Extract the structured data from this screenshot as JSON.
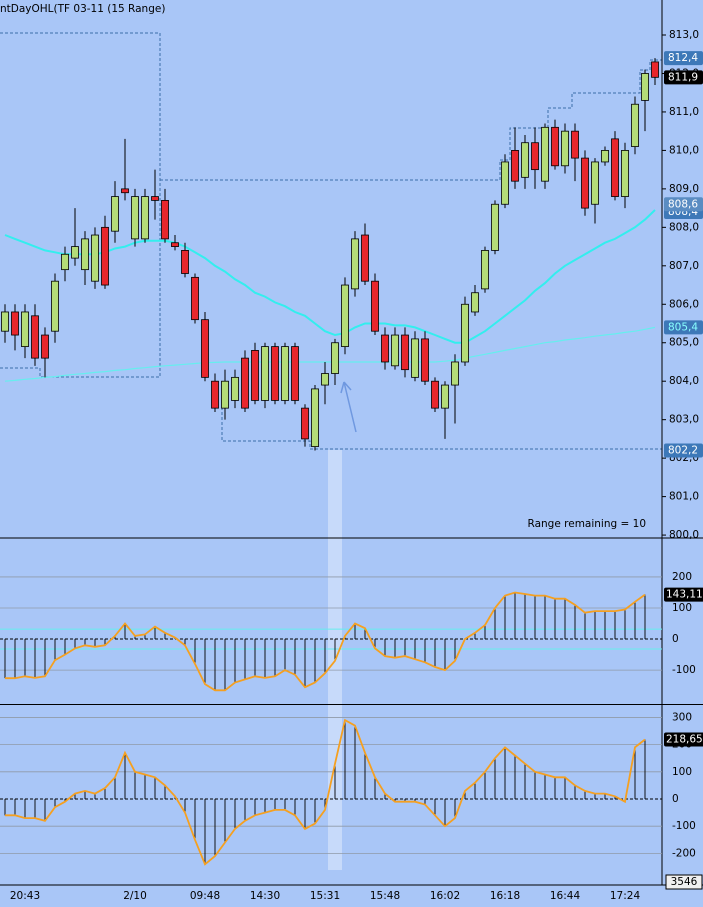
{
  "chart_data": [
    {
      "type": "candlestick",
      "title": "ntDayOHL(TF 03-11 (15 Range)",
      "annotation": "Range remaining = 10",
      "bar_count": "3546",
      "categories": [
        null,
        null,
        "20:43",
        null,
        null,
        null,
        null,
        null,
        null,
        null,
        null,
        null,
        null,
        "2/10",
        null,
        null,
        null,
        null,
        null,
        null,
        "09:48",
        null,
        null,
        null,
        null,
        null,
        "14:30",
        null,
        null,
        null,
        null,
        null,
        "15:31",
        null,
        null,
        null,
        null,
        null,
        "15:48",
        null,
        null,
        null,
        null,
        null,
        "16:02",
        null,
        null,
        null,
        null,
        null,
        "16:18",
        null,
        null,
        null,
        null,
        null,
        "16:44",
        null,
        null,
        null,
        null,
        null,
        "17:24",
        null,
        null,
        null
      ],
      "open": [
        805.3,
        805.8,
        804.9,
        805.7,
        805.2,
        805.3,
        806.9,
        807.2,
        806.9,
        806.6,
        808.0,
        807.9,
        809.0,
        807.7,
        807.7,
        808.8,
        808.7,
        807.6,
        807.4,
        806.7,
        805.6,
        804.0,
        803.3,
        803.5,
        804.6,
        804.8,
        803.5,
        804.9,
        803.5,
        804.9,
        803.3,
        802.3,
        803.9,
        804.2,
        804.9,
        806.4,
        807.8,
        806.6,
        805.2,
        804.4,
        805.2,
        804.1,
        805.1,
        804.0,
        803.3,
        803.9,
        804.5,
        805.8,
        806.4,
        807.4,
        808.6,
        810.0,
        809.3,
        810.2,
        809.2,
        810.6,
        809.6,
        810.5,
        809.8,
        808.6,
        809.7,
        810.3,
        808.8,
        810.1,
        811.3,
        812.3
      ],
      "high": [
        806.0,
        806.0,
        806.0,
        806.0,
        805.4,
        806.8,
        807.5,
        808.5,
        807.9,
        808.0,
        808.3,
        809.2,
        810.3,
        809.0,
        809.0,
        809.5,
        809.0,
        807.8,
        807.6,
        806.8,
        805.8,
        804.2,
        804.3,
        804.3,
        804.8,
        805.0,
        805.0,
        805.0,
        805.0,
        805.0,
        803.4,
        803.9,
        804.5,
        805.1,
        806.7,
        807.9,
        808.1,
        806.8,
        805.4,
        805.4,
        805.4,
        805.3,
        805.3,
        804.1,
        804.0,
        804.7,
        806.2,
        806.5,
        807.5,
        808.7,
        809.9,
        810.6,
        810.4,
        810.6,
        810.7,
        810.8,
        810.7,
        810.7,
        810.0,
        809.8,
        810.1,
        810.5,
        810.2,
        811.4,
        812.1,
        812.4
      ],
      "low": [
        805.0,
        804.8,
        804.6,
        804.4,
        804.1,
        805.0,
        806.6,
        807.0,
        806.5,
        806.4,
        806.4,
        807.6,
        808.7,
        807.5,
        807.6,
        808.2,
        807.6,
        807.4,
        806.7,
        805.5,
        804.0,
        803.2,
        803.0,
        803.3,
        803.2,
        803.4,
        803.3,
        803.4,
        803.4,
        803.4,
        802.3,
        802.2,
        803.4,
        803.9,
        804.7,
        806.2,
        806.5,
        805.2,
        804.3,
        804.3,
        804.1,
        804.0,
        803.9,
        803.2,
        802.5,
        802.9,
        804.4,
        805.7,
        806.3,
        807.3,
        808.5,
        809.0,
        809.0,
        809.0,
        809.0,
        809.5,
        809.4,
        809.2,
        808.3,
        808.1,
        809.6,
        808.7,
        808.5,
        809.9,
        810.5,
        811.7
      ],
      "close": [
        805.8,
        805.2,
        805.8,
        804.6,
        804.6,
        806.6,
        807.3,
        807.5,
        807.7,
        807.8,
        806.5,
        808.8,
        808.9,
        808.8,
        808.8,
        808.7,
        807.7,
        807.5,
        806.8,
        805.6,
        804.1,
        803.3,
        804.0,
        804.1,
        803.3,
        803.5,
        804.9,
        803.5,
        804.9,
        803.5,
        802.5,
        803.8,
        804.2,
        805.0,
        806.5,
        807.7,
        806.6,
        805.3,
        804.5,
        805.2,
        804.3,
        805.1,
        804.0,
        803.3,
        803.9,
        804.5,
        806.0,
        806.3,
        807.4,
        808.6,
        809.7,
        809.2,
        810.2,
        809.5,
        810.6,
        809.6,
        810.5,
        809.8,
        808.5,
        809.7,
        810.0,
        808.8,
        810.0,
        811.2,
        812.0,
        811.9
      ],
      "up_color": "#b4dc78",
      "down_color": "#e8262c",
      "ma_fast": {
        "color": "#33eeee",
        "values": [
          807.8,
          807.7,
          807.6,
          807.5,
          807.4,
          807.35,
          807.3,
          807.3,
          807.3,
          807.3,
          807.35,
          807.45,
          807.5,
          807.6,
          807.65,
          807.65,
          807.65,
          807.6,
          807.5,
          807.35,
          807.2,
          807.0,
          806.85,
          806.65,
          806.5,
          806.3,
          806.2,
          806.05,
          805.95,
          805.8,
          805.7,
          805.5,
          805.3,
          805.2,
          805.25,
          805.4,
          805.5,
          805.5,
          805.5,
          805.45,
          805.45,
          805.4,
          805.3,
          805.2,
          805.1,
          805.0,
          805.0,
          805.15,
          805.3,
          805.5,
          805.7,
          805.9,
          806.1,
          806.35,
          806.55,
          806.8,
          807.0,
          807.15,
          807.3,
          807.45,
          807.6,
          807.7,
          807.85,
          808.0,
          808.2,
          808.45
        ]
      },
      "ma_slow": {
        "color": "#66eeee",
        "values": [
          804.0,
          804.02,
          804.05,
          804.07,
          804.1,
          804.12,
          804.15,
          804.18,
          804.2,
          804.23,
          804.25,
          804.28,
          804.3,
          804.33,
          804.35,
          804.38,
          804.4,
          804.42,
          804.44,
          804.46,
          804.48,
          804.49,
          804.5,
          804.5,
          804.5,
          804.5,
          804.5,
          804.5,
          804.5,
          804.5,
          804.5,
          804.5,
          804.5,
          804.5,
          804.5,
          804.5,
          804.5,
          804.5,
          804.5,
          804.5,
          804.5,
          804.5,
          804.5,
          804.5,
          804.52,
          804.55,
          804.6,
          804.65,
          804.7,
          804.75,
          804.8,
          804.85,
          804.9,
          804.95,
          805.0,
          805.03,
          805.07,
          805.1,
          805.13,
          805.17,
          805.2,
          805.23,
          805.27,
          805.3,
          805.35,
          805.4
        ]
      },
      "ylim": [
        799.95,
        813.91
      ],
      "yticks": [
        {
          "value": 813,
          "label": "813,0"
        },
        {
          "value": 812,
          "label": "812,0"
        },
        {
          "value": 811,
          "label": "811,0"
        },
        {
          "value": 810,
          "label": "810,0"
        },
        {
          "value": 809,
          "label": "809,0"
        },
        {
          "value": 808,
          "label": "808,0"
        },
        {
          "value": 807,
          "label": "807,0"
        },
        {
          "value": 806,
          "label": "806,0"
        },
        {
          "value": 805,
          "label": "805,0"
        },
        {
          "value": 804,
          "label": "804,0"
        },
        {
          "value": 803,
          "label": "803,0"
        },
        {
          "value": 802,
          "label": "802,0"
        },
        {
          "value": 801,
          "label": "801,0"
        },
        {
          "value": 800,
          "label": "800,0"
        }
      ],
      "price_tags": [
        {
          "value": 812.4,
          "label": "812,4",
          "fill": "#3d78b8",
          "text": "#ffffff"
        },
        {
          "value": 811.9,
          "label": "811,9",
          "fill": "#000000",
          "text": "#ffffff"
        },
        {
          "value": 808.4,
          "label": "808,4",
          "fill": "#3d78b8",
          "text": "#ffffff"
        },
        {
          "value": 808.6,
          "label": "808,6",
          "fill": "#5a8cc2",
          "text": "#ffffff"
        },
        {
          "value": 805.4,
          "label": "805,4",
          "fill": "#3d78b8",
          "text": "#88ffff"
        },
        {
          "value": 802.2,
          "label": "802,2",
          "fill": "#3d78b8",
          "text": "#ffffff"
        }
      ]
    },
    {
      "type": "histogram-line",
      "values": [
        -126,
        -126,
        -120,
        -125,
        -120,
        -68,
        -50,
        -30,
        -20,
        -25,
        -20,
        10,
        50,
        10,
        15,
        40,
        20,
        5,
        -20,
        -80,
        -145,
        -165,
        -165,
        -140,
        -130,
        -120,
        -125,
        -120,
        -100,
        -115,
        -155,
        -140,
        -110,
        -70,
        10,
        50,
        35,
        -30,
        -55,
        -60,
        -55,
        -65,
        -75,
        -90,
        -100,
        -70,
        0,
        20,
        45,
        100,
        140,
        150,
        145,
        140,
        140,
        130,
        130,
        110,
        85,
        90,
        90,
        90,
        95,
        120,
        143.11,
        null
      ],
      "color": "#f5a020",
      "bands": [
        32,
        -32
      ],
      "band_color": "#66eeee",
      "ylim": [
        -206,
        319
      ],
      "yticks": [
        200,
        100,
        0,
        -100
      ],
      "tag": {
        "value": 143.11,
        "label": "143,11"
      }
    },
    {
      "type": "histogram-line",
      "values": [
        -60,
        -60,
        -70,
        -70,
        -80,
        -30,
        -10,
        20,
        30,
        20,
        40,
        80,
        170,
        100,
        90,
        80,
        50,
        10,
        -50,
        -150,
        -240,
        -210,
        -160,
        -110,
        -80,
        -60,
        -50,
        -40,
        -40,
        -60,
        -110,
        -90,
        -40,
        130,
        290,
        270,
        170,
        80,
        20,
        -10,
        -10,
        -10,
        -20,
        -60,
        -100,
        -70,
        30,
        60,
        100,
        150,
        190,
        160,
        130,
        100,
        90,
        80,
        80,
        50,
        30,
        20,
        20,
        10,
        -10,
        190,
        218.65,
        null
      ],
      "color": "#f5a020",
      "bands": [],
      "ylim": [
        -261,
        342
      ],
      "yticks": [
        300,
        200,
        100,
        0,
        -100,
        -200
      ],
      "tag": {
        "value": 218.65,
        "label": "218,65"
      }
    }
  ]
}
